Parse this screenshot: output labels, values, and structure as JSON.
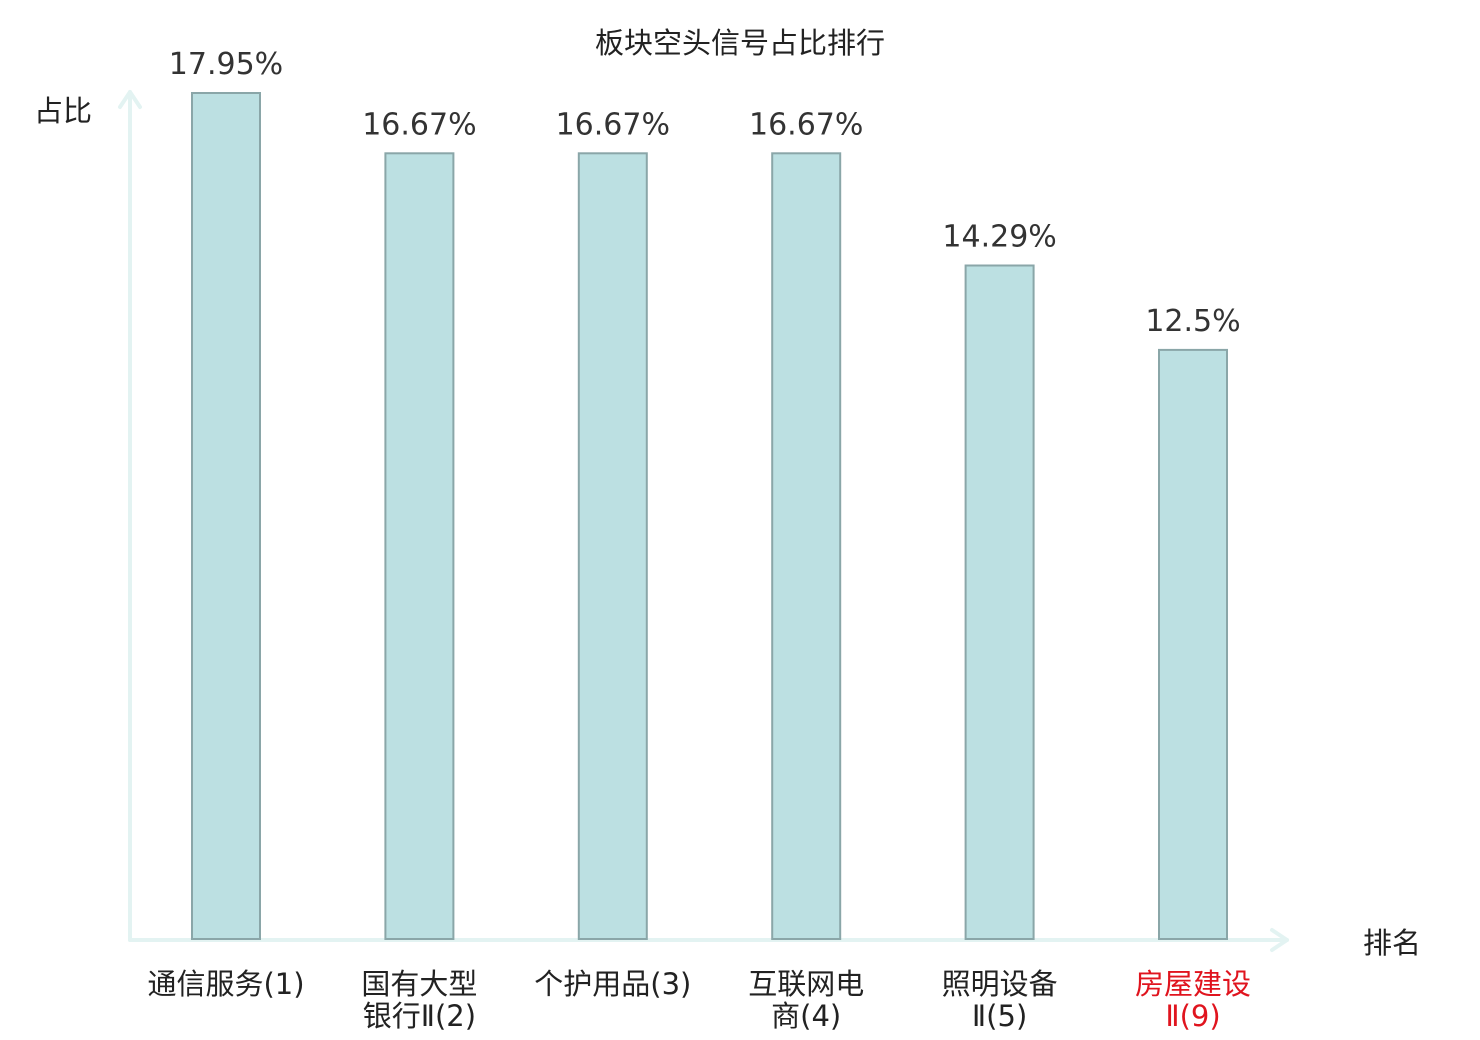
{
  "chart_data": {
    "type": "bar",
    "title": "板块空头信号占比排行",
    "ylabel": "占比",
    "xlabel": "排名",
    "categories": [
      [
        "通信服务(1)"
      ],
      [
        "国有大型",
        "银行Ⅱ(2)"
      ],
      [
        "个护用品(3)"
      ],
      [
        "互联网电",
        "商(4)"
      ],
      [
        "照明设备",
        "Ⅱ(5)"
      ],
      [
        "房屋建设",
        "Ⅱ(9)"
      ]
    ],
    "values": [
      17.95,
      16.67,
      16.67,
      16.67,
      14.29,
      12.5
    ],
    "value_labels": [
      "17.95%",
      "16.67%",
      "16.67%",
      "16.67%",
      "14.29%",
      "12.5%"
    ],
    "highlight_index": 5,
    "ylim": [
      0,
      17.95
    ],
    "grid": false,
    "colors": {
      "bar_fill": "#bce0e2",
      "bar_stroke": "#8aa6a8",
      "axis": "#e3f3f2",
      "highlight": "#e0141e"
    }
  }
}
